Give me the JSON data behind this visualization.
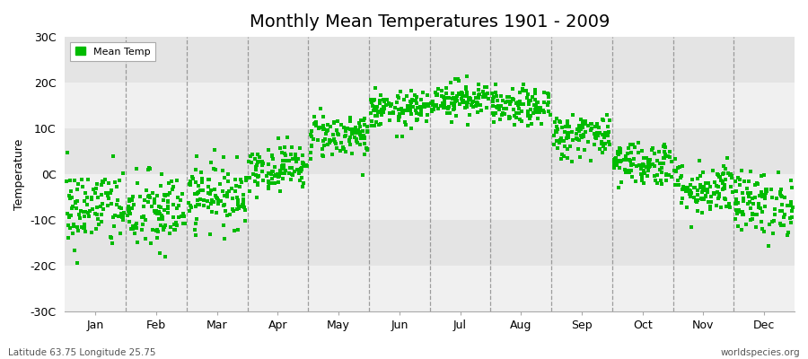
{
  "title": "Monthly Mean Temperatures 1901 - 2009",
  "ylabel": "Temperature",
  "ylim": [
    -30,
    30
  ],
  "yticks": [
    -30,
    -20,
    -10,
    0,
    10,
    20,
    30
  ],
  "ytick_labels": [
    "-30C",
    "-20C",
    "-10C",
    "0C",
    "10C",
    "20C",
    "30C"
  ],
  "months": [
    "Jan",
    "Feb",
    "Mar",
    "Apr",
    "May",
    "Jun",
    "Jul",
    "Aug",
    "Sep",
    "Oct",
    "Nov",
    "Dec"
  ],
  "dot_color": "#00BB00",
  "bg_color": "#F5F5F5",
  "band_light": "#F0F0F0",
  "band_dark": "#E4E4E4",
  "footer_left": "Latitude 63.75 Longitude 25.75",
  "footer_right": "worldspecies.org",
  "legend_label": "Mean Temp",
  "title_fontsize": 14,
  "n_years": 109,
  "monthly_means": [
    -7.5,
    -8.5,
    -4.5,
    1.5,
    8.5,
    14.0,
    16.5,
    14.5,
    8.5,
    2.5,
    -3.0,
    -6.5
  ],
  "monthly_stds": [
    4.5,
    4.5,
    3.5,
    2.5,
    2.5,
    2.0,
    2.0,
    2.0,
    2.5,
    2.5,
    3.0,
    3.5
  ]
}
